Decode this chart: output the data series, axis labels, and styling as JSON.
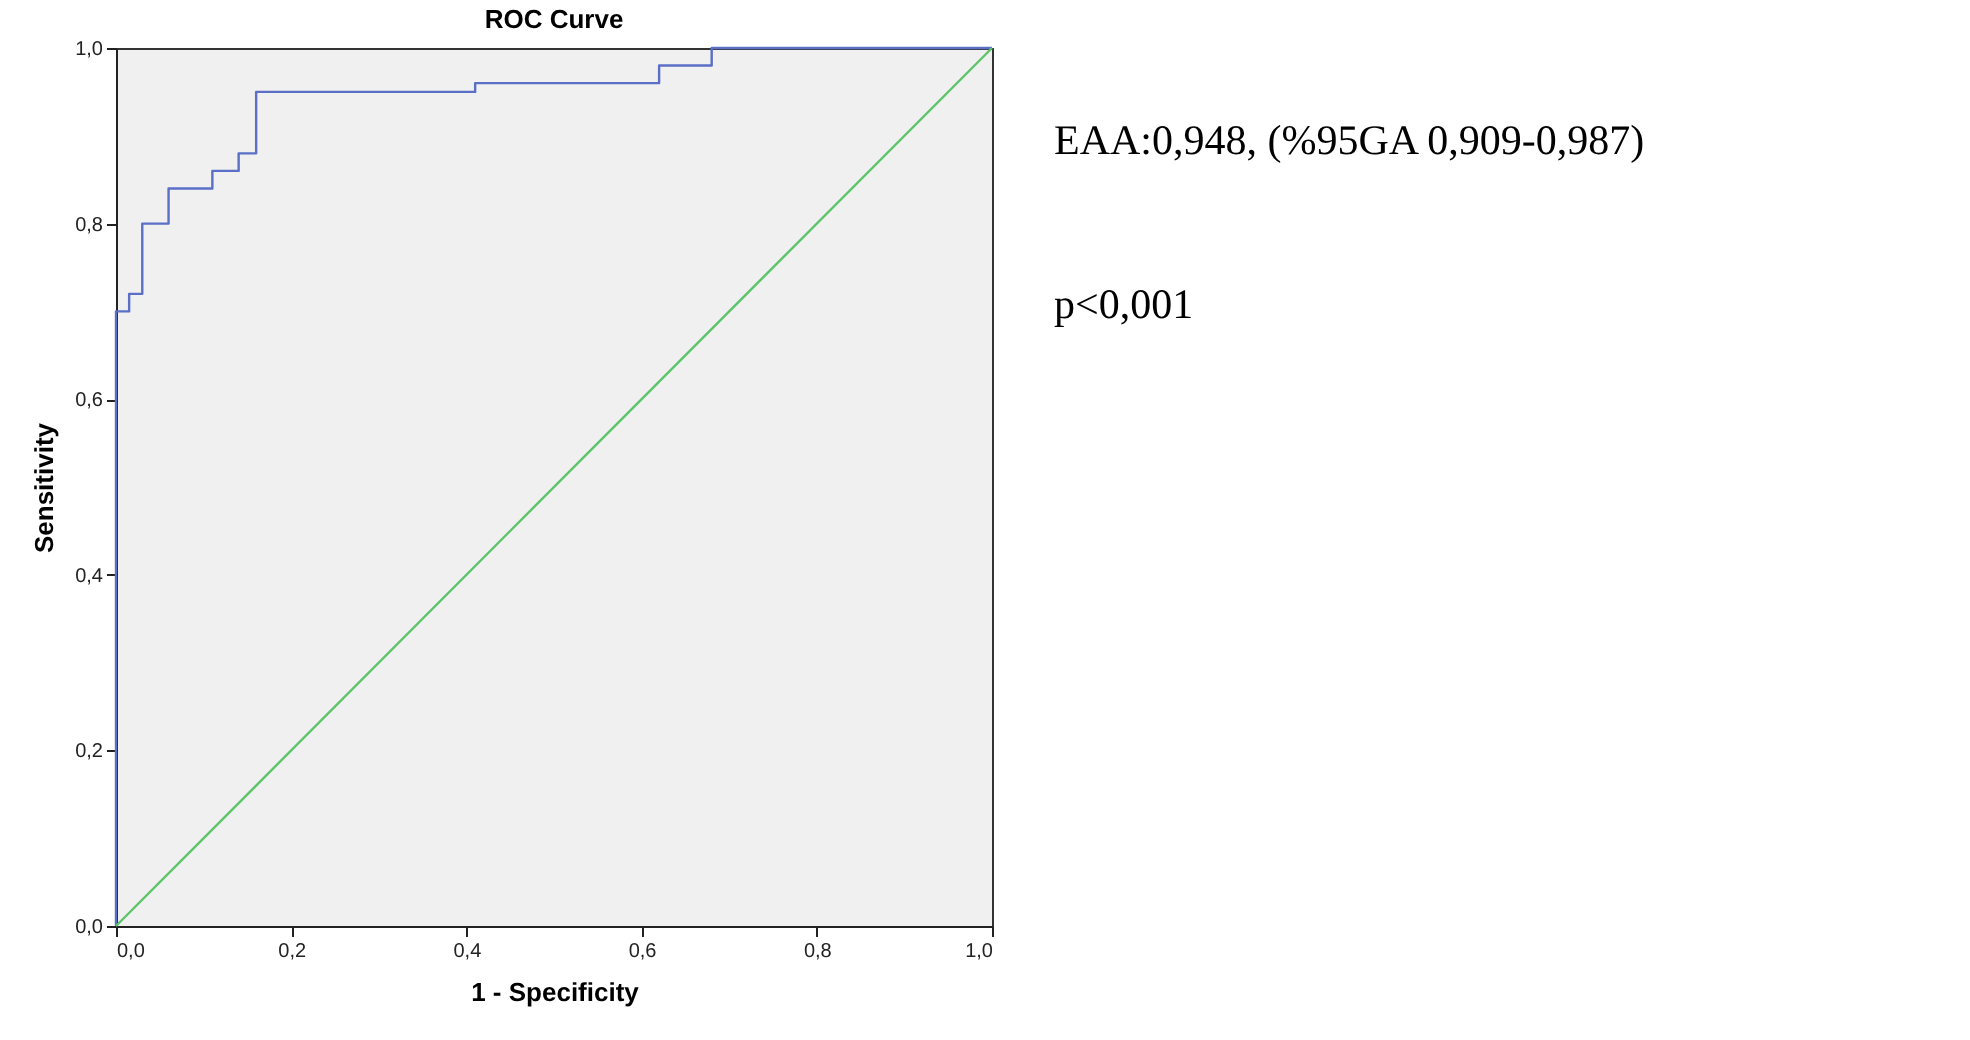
{
  "chart_data": {
    "type": "line",
    "title": "ROC Curve",
    "xlabel": "1 - Specificity",
    "ylabel": "Sensitivity",
    "xlim": [
      0,
      1
    ],
    "ylim": [
      0,
      1
    ],
    "xticks": [
      {
        "value": 0,
        "label": "0,0"
      },
      {
        "value": 0.2,
        "label": "0,2"
      },
      {
        "value": 0.4,
        "label": "0,4"
      },
      {
        "value": 0.6,
        "label": "0,6"
      },
      {
        "value": 0.8,
        "label": "0,8"
      },
      {
        "value": 1,
        "label": "1,0"
      }
    ],
    "yticks": [
      {
        "value": 0,
        "label": "0,0"
      },
      {
        "value": 0.2,
        "label": "0,2"
      },
      {
        "value": 0.4,
        "label": "0,4"
      },
      {
        "value": 0.6,
        "label": "0,6"
      },
      {
        "value": 0.8,
        "label": "0,8"
      },
      {
        "value": 1,
        "label": "1,0"
      }
    ],
    "grid": false,
    "marker": "none",
    "line_style": "solid",
    "series": [
      {
        "type": "step",
        "color": "#5b6fc6",
        "x": [
          0,
          0,
          0.015,
          0.03,
          0.06,
          0.11,
          0.14,
          0.16,
          0.41,
          0.62,
          0.68,
          1
        ],
        "values": [
          0,
          0.7,
          0.72,
          0.8,
          0.84,
          0.86,
          0.88,
          0.95,
          0.96,
          0.98,
          1,
          1
        ]
      },
      {
        "color": "#5cc46a",
        "x": [
          0,
          1
        ],
        "values": [
          0,
          1
        ]
      }
    ],
    "annotations": [
      "EAA:0,948, (%95GA 0,909-0,987)",
      "p<0,001"
    ]
  }
}
